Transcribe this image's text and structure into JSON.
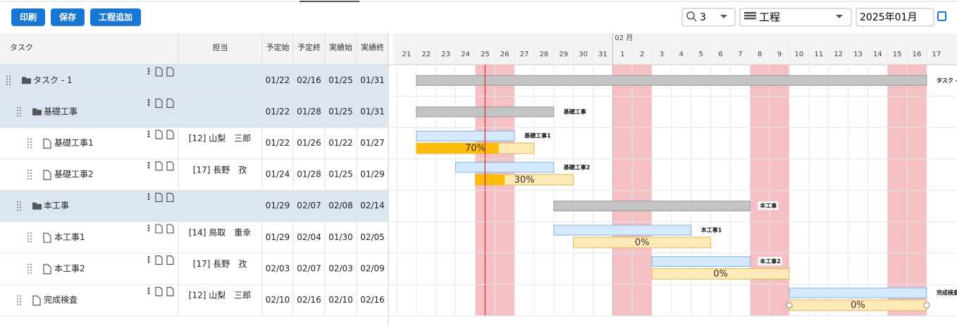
{
  "toolbar": {
    "buttons": [
      "印刷",
      "保存",
      "工程追加"
    ],
    "zoom": "3",
    "view": "工程",
    "month": "2025年01月"
  },
  "columns": [
    "タスク",
    "担当",
    "予定始",
    "予定終",
    "実績始",
    "実績終"
  ],
  "timeline": {
    "month": "02 月",
    "days": [
      {
        "label": "21"
      },
      {
        "label": "22"
      },
      {
        "label": "23"
      },
      {
        "label": "24"
      },
      {
        "label": "25",
        "weekend": "sat"
      },
      {
        "label": "26",
        "weekend": "sun"
      },
      {
        "label": "27"
      },
      {
        "label": "28"
      },
      {
        "label": "29"
      },
      {
        "label": "30"
      },
      {
        "label": "31"
      },
      {
        "label": "1",
        "weekend": "sat"
      },
      {
        "label": "2",
        "weekend": "sun"
      },
      {
        "label": "3"
      },
      {
        "label": "4"
      },
      {
        "label": "5"
      },
      {
        "label": "6"
      },
      {
        "label": "7"
      },
      {
        "label": "8",
        "weekend": "sat"
      },
      {
        "label": "9",
        "weekend": "sun"
      },
      {
        "label": "10"
      },
      {
        "label": "11"
      },
      {
        "label": "12"
      },
      {
        "label": "13"
      },
      {
        "label": "14"
      },
      {
        "label": "15",
        "weekend": "sat"
      },
      {
        "label": "16",
        "weekend": "sun"
      },
      {
        "label": "17"
      }
    ]
  },
  "today": "01/25",
  "rows": [
    {
      "name": "タスク - 1",
      "level": 0,
      "group": true,
      "plan_start": "01/22",
      "plan_end": "02/16",
      "act_start": "01/25",
      "act_end": "01/31"
    },
    {
      "name": "基礎工事",
      "level": 1,
      "group": true,
      "plan_start": "01/22",
      "plan_end": "01/28",
      "act_start": "01/25",
      "act_end": "01/31"
    },
    {
      "name": "基礎工事1",
      "level": 2,
      "group": false,
      "assignee": "[12] 山梨　三郎",
      "plan_start": "01/22",
      "plan_end": "01/26",
      "act_start": "01/22",
      "act_end": "01/27",
      "progress": 70,
      "progress_label": "70%"
    },
    {
      "name": "基礎工事2",
      "level": 2,
      "group": false,
      "assignee": "[17] 長野　孜",
      "plan_start": "01/24",
      "plan_end": "01/28",
      "act_start": "01/25",
      "act_end": "01/29",
      "progress": 30,
      "progress_label": "30%"
    },
    {
      "name": "本工事",
      "level": 1,
      "group": true,
      "plan_start": "01/29",
      "plan_end": "02/07",
      "act_start": "02/08",
      "act_end": "02/14"
    },
    {
      "name": "本工事1",
      "level": 2,
      "group": false,
      "assignee": "[14] 鳥取　重幸",
      "plan_start": "01/29",
      "plan_end": "02/04",
      "act_start": "01/30",
      "act_end": "02/05",
      "progress": 0,
      "progress_label": "0%"
    },
    {
      "name": "本工事2",
      "level": 2,
      "group": false,
      "assignee": "[17] 長野　孜",
      "plan_start": "02/03",
      "plan_end": "02/07",
      "act_start": "02/03",
      "act_end": "02/09",
      "progress": 0,
      "progress_label": "0%"
    },
    {
      "name": "完成検査",
      "level": 1,
      "group": false,
      "assignee": "[12] 山梨　三郎",
      "plan_start": "02/10",
      "plan_end": "02/16",
      "act_start": "02/10",
      "act_end": "02/16",
      "progress": 0,
      "progress_label": "0%"
    }
  ]
}
